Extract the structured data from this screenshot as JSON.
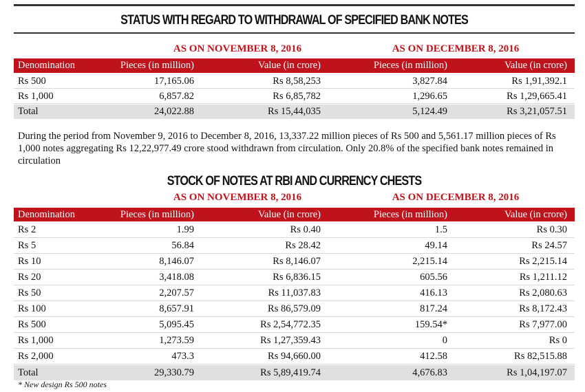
{
  "title": "STATUS WITH REGARD TO WITHDRAWAL OF SPECIFIED BANK NOTES",
  "table1": {
    "period_headers": [
      "AS ON NOVEMBER 8, 2016",
      "AS ON DECEMBER 8, 2016"
    ],
    "columns": [
      "Denomination",
      "Pieces (in million)",
      "Value (in crore)",
      "Pieces (in million)",
      "Value (in crore)"
    ],
    "rows": [
      [
        "Rs 500",
        "17,165.06",
        "Rs 8,58,253",
        "3,827.84",
        "Rs 1,91,392.1"
      ],
      [
        "Rs 1,000",
        "6,857.82",
        "Rs 6,85,782",
        "1,296.65",
        "Rs 1,29,665.41"
      ],
      [
        "Total",
        "24,022.88",
        "Rs 15,44,035",
        "5,124.49",
        "Rs 3,21,057.51"
      ]
    ]
  },
  "paragraph": "During the period from November 9, 2016 to December 8, 2016, 13,337.22 million pieces of Rs 500 and 5,561.17 million pieces of Rs 1,000 notes aggregating Rs 12,22,977.49 crore stood withdrawn from circulation. Only 20.8% of the specified bank notes remained in circulation",
  "title2": "STOCK OF NOTES AT RBI AND CURRENCY CHESTS",
  "table2": {
    "period_headers": [
      "AS ON NOVEMBER 8, 2016",
      "AS ON DECEMBER 8, 2016"
    ],
    "columns": [
      "Denomination",
      "Pieces (in million)",
      "Value (in crore)",
      "Pieces (in million)",
      "Value (in crore)"
    ],
    "rows": [
      [
        "Rs 2",
        "1.99",
        "Rs 0.40",
        "1.5",
        "Rs 0.30"
      ],
      [
        "Rs 5",
        "56.84",
        "Rs 28.42",
        "49.14",
        "Rs 24.57"
      ],
      [
        "Rs 10",
        "8,146.07",
        "Rs 8,146.07",
        "2,215.14",
        "Rs 2,215.14"
      ],
      [
        "Rs 20",
        "3,418.08",
        "Rs 6,836.15",
        "605.56",
        "Rs 1,211.12"
      ],
      [
        "Rs 50",
        "2,207.57",
        "Rs 11,037.83",
        "416.13",
        "Rs 2,080.63"
      ],
      [
        "Rs 100",
        "8,657.91",
        "Rs 86,579.09",
        "817.24",
        "Rs 8,172.43"
      ],
      [
        "Rs 500",
        "5,095.45",
        "Rs 2,54,772.35",
        "159.54*",
        "Rs 7,977.00"
      ],
      [
        "Rs 1,000",
        "1,273.59",
        "Rs 1,27,359.43",
        "0",
        "Rs 0"
      ],
      [
        "Rs 2,000",
        "473.3",
        "Rs 94,660.00",
        "412.58",
        "Rs 82,515.88"
      ],
      [
        "Total",
        "29,330.79",
        "Rs 5,89,419.74",
        "4,676.83",
        "Rs 1,04,197.07"
      ]
    ]
  },
  "footnote": "* New design Rs 500 notes"
}
